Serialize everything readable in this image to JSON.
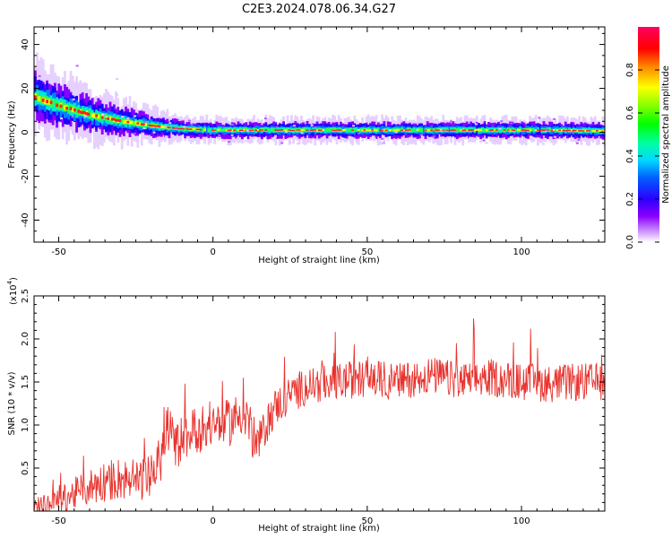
{
  "title": "C2E3.2024.078.06.34.G27",
  "chart_data": [
    {
      "type": "heatmap",
      "xlabel": "Height of straight line (km)",
      "ylabel": "Frequency (Hz)",
      "xlim": [
        -58,
        127
      ],
      "ylim": [
        -50,
        48
      ],
      "xticks": [
        -50,
        0,
        50,
        100
      ],
      "yticks": [
        -40,
        -20,
        0,
        20,
        40
      ],
      "colorbar": {
        "label": "Normalized spectral amplitude",
        "range": [
          0,
          1
        ],
        "ticks": [
          "0.0",
          "0.2",
          "0.4",
          "0.6",
          "0.8"
        ]
      },
      "ridge": {
        "x": [
          -58,
          -50,
          -40,
          -30,
          -20,
          -10,
          0,
          10,
          20,
          30,
          40,
          50,
          60,
          70,
          80,
          90,
          100,
          110,
          127
        ],
        "y": [
          16,
          12,
          8,
          5,
          3,
          1.5,
          1,
          1,
          1,
          1,
          1,
          1,
          1,
          1,
          1,
          1,
          1,
          1,
          0.5
        ]
      }
    },
    {
      "type": "line",
      "xlabel": "Height of straight line (km)",
      "ylabel": "SNR (10 * v/v)",
      "yscale_label": "(x10",
      "yscale_exp": "4",
      "yscale_close": ")",
      "xlim": [
        -58,
        127
      ],
      "ylim": [
        0,
        2.5
      ],
      "xticks": [
        -50,
        0,
        50,
        100
      ],
      "yticks": [
        "0.5",
        "1.0",
        "1.5",
        "2.0",
        "2.5"
      ],
      "series": [
        {
          "color": "#e8322d",
          "x": [
            -58,
            -55,
            -50,
            -45,
            -40,
            -35,
            -30,
            -25,
            -20,
            -17,
            -15,
            -12,
            -10,
            -5,
            0,
            5,
            8,
            10,
            12,
            14,
            16,
            20,
            25,
            30,
            40,
            50,
            60,
            70,
            75,
            80,
            90,
            100,
            110,
            120,
            127
          ],
          "y": [
            0.02,
            0.05,
            0.12,
            0.2,
            0.28,
            0.35,
            0.38,
            0.35,
            0.4,
            0.6,
            1.0,
            0.75,
            0.85,
            0.95,
            1.0,
            1.02,
            1.1,
            1.2,
            1.0,
            0.75,
            0.9,
            1.2,
            1.35,
            1.45,
            1.5,
            1.55,
            1.5,
            1.58,
            1.55,
            1.5,
            1.55,
            1.5,
            1.48,
            1.5,
            1.5
          ]
        }
      ]
    }
  ]
}
